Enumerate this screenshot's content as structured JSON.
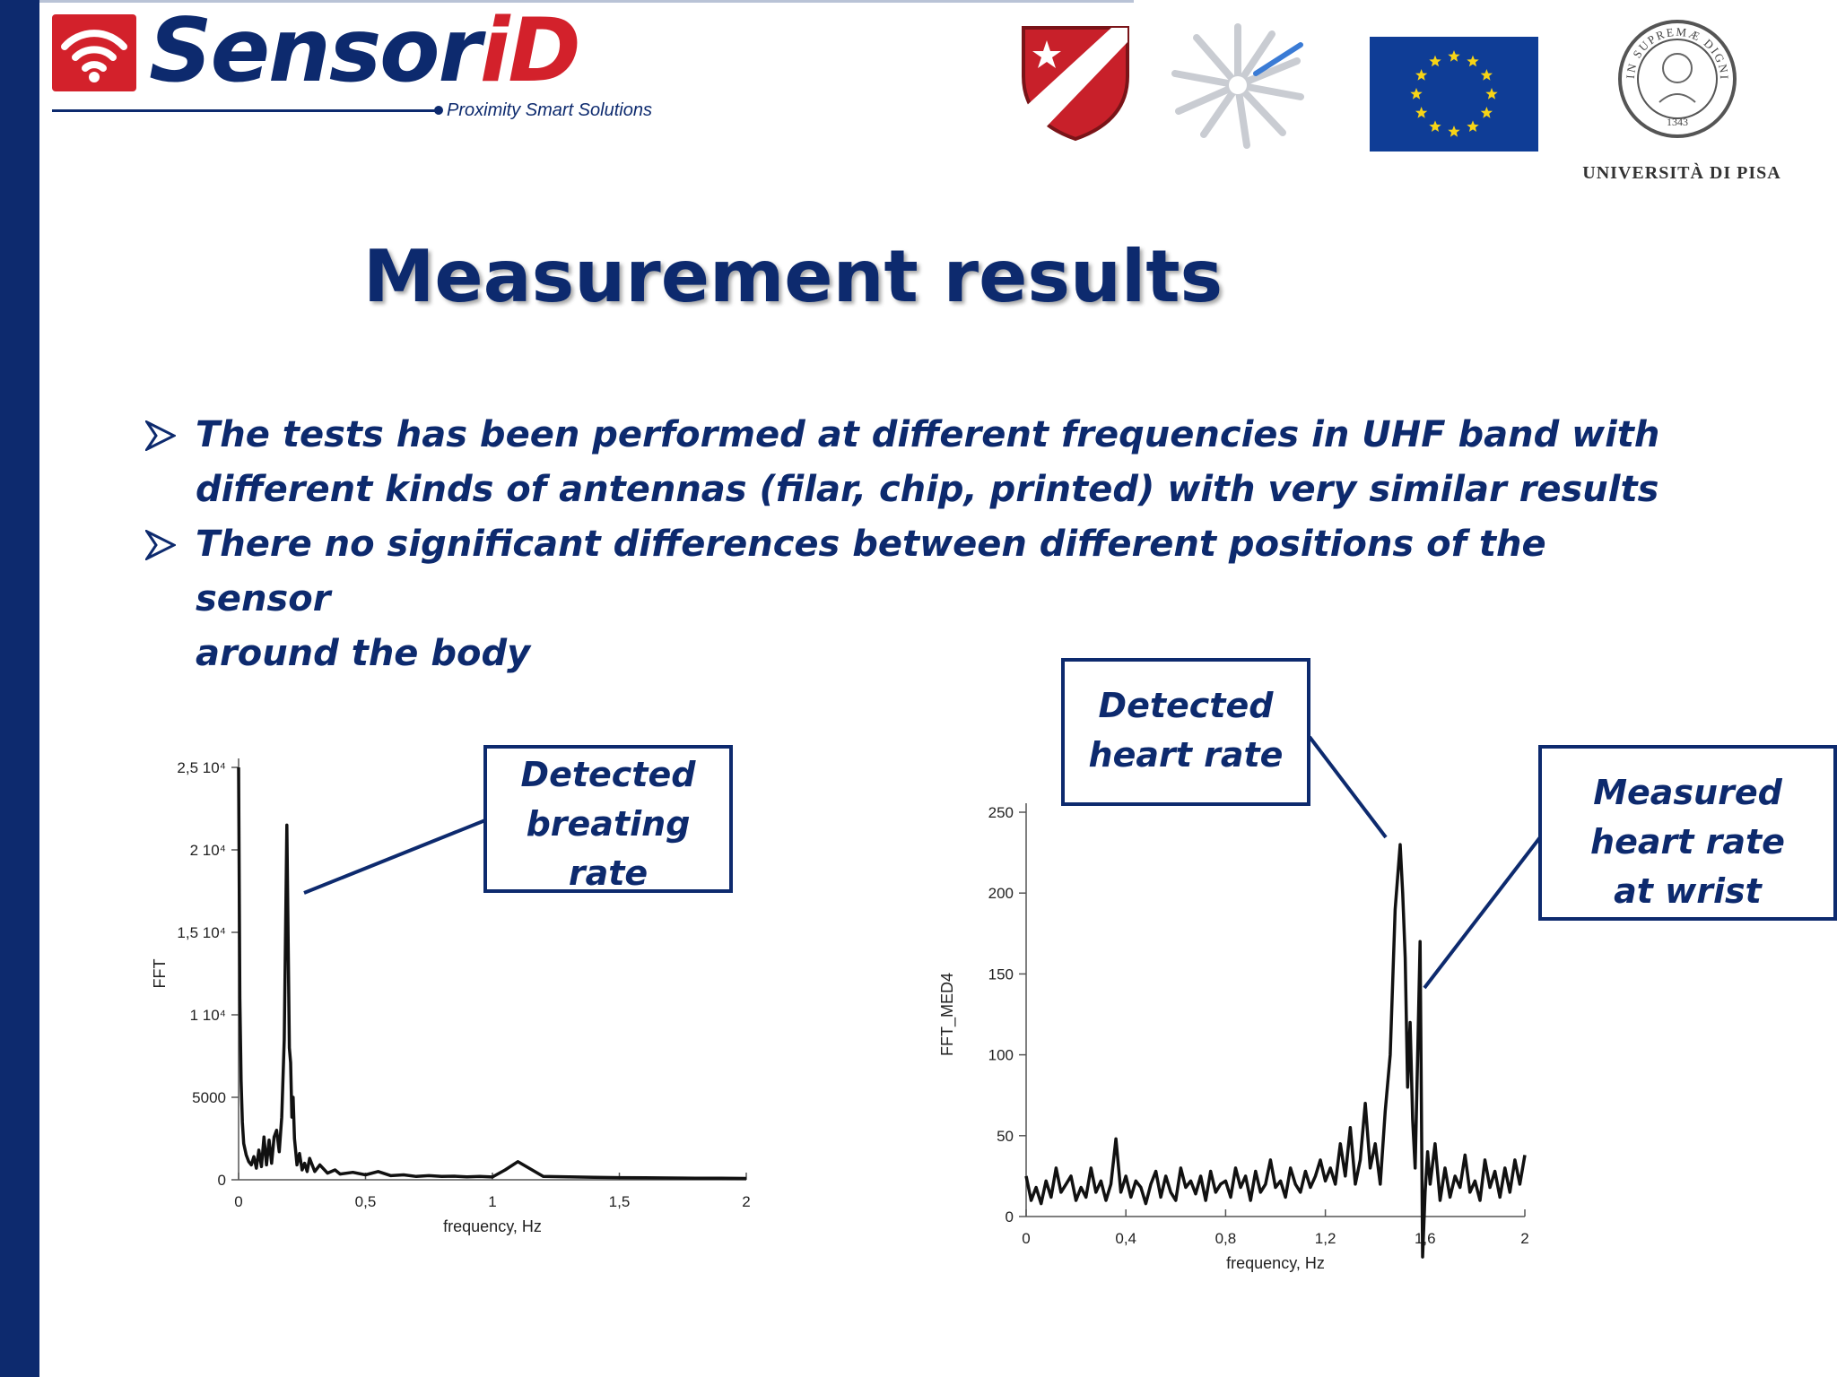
{
  "header": {
    "brand_main": "Sensor",
    "brand_accent": "iD",
    "tagline": "Proximity Smart Solutions",
    "university": "UNIVERSITÀ DI PISA",
    "seal_text": "IN SUPREMÆ DIGNITATIS",
    "seal_year": "1343",
    "colors": {
      "primary": "#0d2a6e",
      "accent": "#d3212b",
      "eu_blue": "#0f3d96",
      "eu_star": "#f7d416"
    }
  },
  "title": "Measurement results",
  "bullets": [
    {
      "lines": [
        "The tests has been performed at different frequencies in UHF band with",
        "different kinds of antennas (filar, chip, printed) with very similar results"
      ]
    },
    {
      "lines": [
        "There no significant differences between different positions of the sensor",
        "around the body"
      ]
    }
  ],
  "callouts": {
    "breathing": [
      "Detected",
      "breating",
      "rate"
    ],
    "heart": [
      "Detected",
      "heart rate"
    ],
    "wrist": [
      "Measured",
      "heart rate",
      "at wrist"
    ]
  },
  "chart_data": [
    {
      "type": "line",
      "title": "",
      "xlabel": "frequency, Hz",
      "ylabel": "FFT",
      "xlim": [
        0,
        2
      ],
      "ylim": [
        0,
        25000
      ],
      "x_ticks": [
        0,
        0.5,
        1,
        1.5,
        2
      ],
      "x_tick_labels": [
        "0",
        "0,5",
        "1",
        "1,5",
        "2"
      ],
      "y_ticks": [
        0,
        5000,
        10000,
        15000,
        20000,
        25000
      ],
      "y_tick_labels": [
        "0",
        "5000",
        "1 10⁴",
        "1,5 10⁴",
        "2 10⁴",
        "2,5 10⁴"
      ],
      "grid": false,
      "series": [
        {
          "x": [
            0,
            0.005,
            0.01,
            0.015,
            0.02,
            0.03,
            0.04,
            0.05,
            0.06,
            0.07,
            0.08,
            0.09,
            0.1,
            0.11,
            0.12,
            0.13,
            0.14,
            0.15,
            0.16,
            0.17,
            0.18,
            0.19,
            0.2,
            0.205,
            0.21,
            0.215,
            0.22,
            0.23,
            0.24,
            0.25,
            0.26,
            0.27,
            0.28,
            0.3,
            0.32,
            0.35,
            0.38,
            0.4,
            0.45,
            0.5,
            0.55,
            0.6,
            0.65,
            0.7,
            0.75,
            0.8,
            0.85,
            0.9,
            0.95,
            1.0,
            1.05,
            1.1,
            1.2,
            1.3,
            1.4,
            1.5,
            1.6,
            1.7,
            1.8,
            1.9,
            2.0
          ],
          "y": [
            25000,
            11000,
            6000,
            3500,
            2200,
            1500,
            1100,
            900,
            1400,
            700,
            1800,
            800,
            2600,
            900,
            2400,
            1000,
            2600,
            3000,
            1700,
            3800,
            8500,
            21500,
            8000,
            7100,
            3800,
            5000,
            2500,
            900,
            1600,
            600,
            1000,
            500,
            1300,
            500,
            900,
            400,
            600,
            350,
            450,
            300,
            500,
            250,
            300,
            200,
            250,
            200,
            220,
            180,
            200,
            170,
            600,
            1100,
            200,
            180,
            150,
            130,
            120,
            110,
            100,
            90,
            80
          ]
        }
      ]
    },
    {
      "type": "line",
      "title": "",
      "xlabel": "frequency, Hz",
      "ylabel": "FFT_MED4",
      "xlim": [
        0,
        2
      ],
      "ylim": [
        0,
        250
      ],
      "x_ticks": [
        0,
        0.4,
        0.8,
        1.2,
        1.6,
        2
      ],
      "x_tick_labels": [
        "0",
        "0,4",
        "0,8",
        "1,2",
        "1,6",
        "2"
      ],
      "y_ticks": [
        0,
        50,
        100,
        150,
        200,
        250
      ],
      "y_tick_labels": [
        "0",
        "50",
        "100",
        "150",
        "200",
        "250"
      ],
      "grid": false,
      "series": [
        {
          "x": [
            0,
            0.02,
            0.04,
            0.06,
            0.08,
            0.1,
            0.12,
            0.14,
            0.16,
            0.18,
            0.2,
            0.22,
            0.24,
            0.26,
            0.28,
            0.3,
            0.32,
            0.34,
            0.36,
            0.38,
            0.4,
            0.42,
            0.44,
            0.46,
            0.48,
            0.5,
            0.52,
            0.54,
            0.56,
            0.58,
            0.6,
            0.62,
            0.64,
            0.66,
            0.68,
            0.7,
            0.72,
            0.74,
            0.76,
            0.78,
            0.8,
            0.82,
            0.84,
            0.86,
            0.88,
            0.9,
            0.92,
            0.94,
            0.96,
            0.98,
            1.0,
            1.02,
            1.04,
            1.06,
            1.08,
            1.1,
            1.12,
            1.14,
            1.16,
            1.18,
            1.2,
            1.22,
            1.24,
            1.26,
            1.28,
            1.3,
            1.32,
            1.34,
            1.36,
            1.38,
            1.4,
            1.42,
            1.44,
            1.46,
            1.48,
            1.5,
            1.51,
            1.52,
            1.53,
            1.54,
            1.55,
            1.56,
            1.57,
            1.58,
            1.59,
            1.6,
            1.61,
            1.62,
            1.64,
            1.66,
            1.68,
            1.7,
            1.72,
            1.74,
            1.76,
            1.78,
            1.8,
            1.82,
            1.84,
            1.86,
            1.88,
            1.9,
            1.92,
            1.94,
            1.96,
            1.98,
            2.0
          ],
          "y": [
            25,
            10,
            18,
            8,
            22,
            12,
            30,
            15,
            20,
            25,
            10,
            18,
            12,
            30,
            15,
            22,
            10,
            20,
            48,
            15,
            25,
            12,
            22,
            18,
            8,
            20,
            28,
            12,
            25,
            15,
            10,
            30,
            18,
            22,
            14,
            25,
            10,
            28,
            15,
            20,
            22,
            12,
            30,
            18,
            25,
            10,
            28,
            15,
            20,
            35,
            18,
            22,
            12,
            30,
            20,
            15,
            28,
            18,
            25,
            35,
            22,
            30,
            20,
            45,
            25,
            55,
            20,
            35,
            70,
            30,
            45,
            20,
            65,
            100,
            190,
            230,
            200,
            160,
            80,
            120,
            60,
            30,
            100,
            170,
            -25,
            15,
            40,
            20,
            45,
            10,
            30,
            12,
            25,
            18,
            38,
            15,
            22,
            10,
            35,
            18,
            28,
            12,
            30,
            15,
            35,
            20,
            38
          ]
        }
      ]
    }
  ]
}
